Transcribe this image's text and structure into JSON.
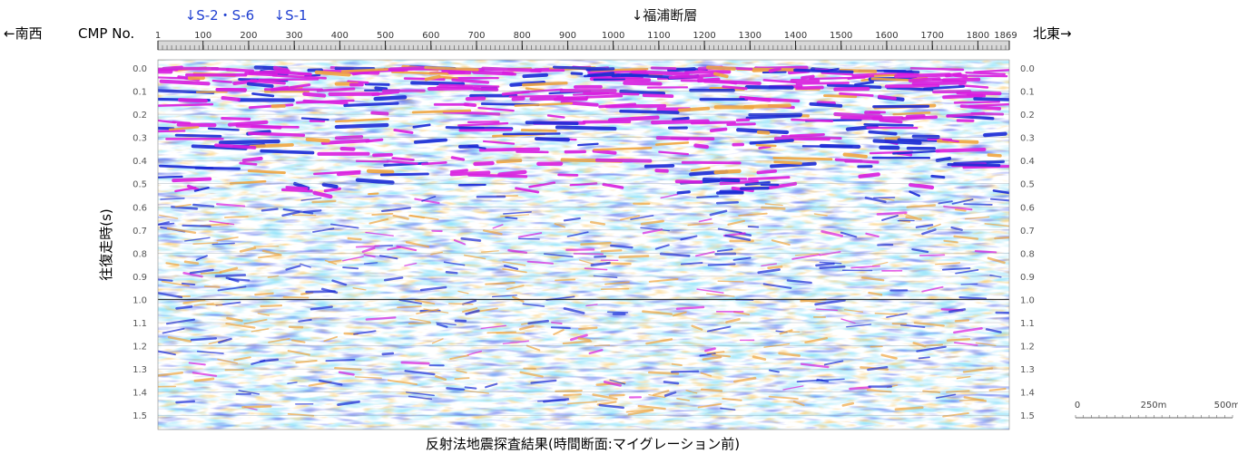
{
  "chart_data": {
    "type": "heatmap",
    "title": "反射法地震探査結果(時間断面:マイグレーション前)",
    "direction_left": "←南西",
    "direction_right": "北東→",
    "xlabel": "CMP No.",
    "ylabel": "往復走時(s)",
    "x_ticks": [
      1,
      100,
      200,
      300,
      400,
      500,
      600,
      700,
      800,
      900,
      1000,
      1100,
      1200,
      1300,
      1400,
      1500,
      1600,
      1700,
      1800,
      1869
    ],
    "x_range": [
      1,
      1869
    ],
    "y_ticks": [
      "0.0",
      "0.1",
      "0.2",
      "0.3",
      "0.4",
      "0.5",
      "0.6",
      "0.7",
      "0.8",
      "0.9",
      "1.0",
      "1.1",
      "1.2",
      "1.3",
      "1.4",
      "1.5"
    ],
    "y_range": [
      0,
      1.55
    ],
    "grid": true,
    "markers": [
      {
        "label": "↓S-2・S-6",
        "cmp": 60,
        "color": "#1f3fd1"
      },
      {
        "label": "↓S-1",
        "cmp": 255,
        "color": "#1f3fd1"
      },
      {
        "label": "↓福浦断層",
        "cmp": 1040,
        "color": "#111111"
      }
    ],
    "scale_bar": {
      "labels": [
        "0",
        "250m",
        "500m"
      ]
    },
    "colors": {
      "strong_positive": "#d91edf",
      "positive": "#1a2bd6",
      "weak": "#5fd0e6",
      "negative": "#f0a640",
      "background": "#ffffff"
    }
  }
}
